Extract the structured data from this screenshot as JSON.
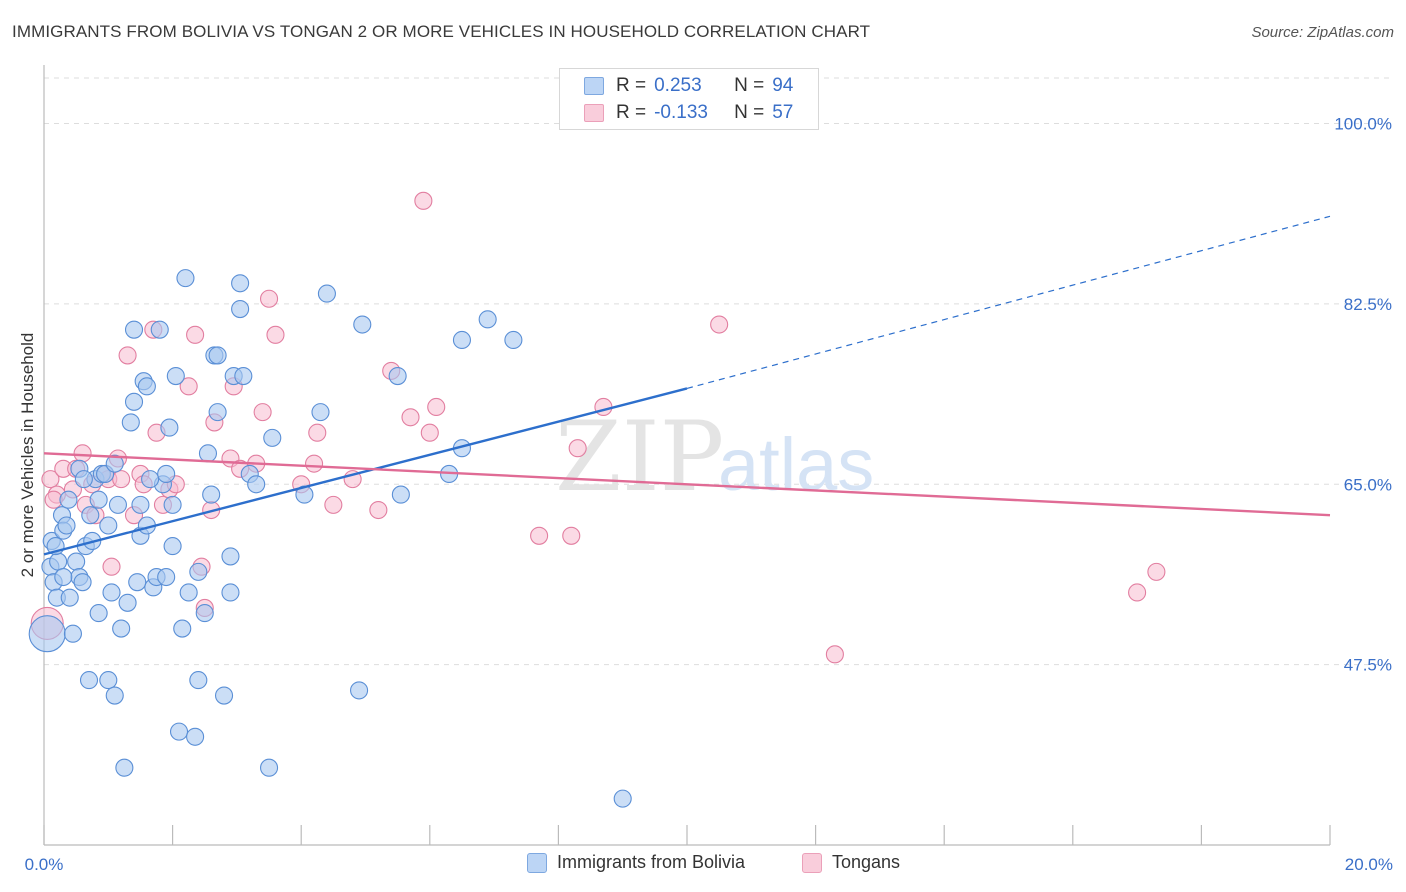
{
  "title": "IMMIGRANTS FROM BOLIVIA VS TONGAN 2 OR MORE VEHICLES IN HOUSEHOLD CORRELATION CHART",
  "source": "Source: ZipAtlas.com",
  "watermark": {
    "zip": "ZIP",
    "atlas": "atlas"
  },
  "legend": {
    "r_label": "R =",
    "n_label": "N =",
    "rows": [
      {
        "r": "0.253",
        "n": "94"
      },
      {
        "r": "-0.133",
        "n": "57"
      }
    ]
  },
  "colors": {
    "bolivia_fill": "#a9c8f0",
    "bolivia_stroke": "#5a8fd6",
    "bolivia_line": "#2d6fcc",
    "tongan_fill": "#f7bcd0",
    "tongan_stroke": "#e27ea0",
    "tongan_line": "#e06b95",
    "grid": "#dddddd",
    "tick_text": "#3a6fc8"
  },
  "chart_data": {
    "type": "scatter",
    "title": "IMMIGRANTS FROM BOLIVIA VS TONGAN 2 OR MORE VEHICLES IN HOUSEHOLD CORRELATION CHART",
    "xlabel": "",
    "ylabel": "2 or more Vehicles in Household",
    "xlim": [
      0,
      20
    ],
    "ylim": [
      30,
      105
    ],
    "x_ticks": [
      0,
      2,
      4,
      6,
      8,
      10,
      12,
      14,
      16,
      18,
      20
    ],
    "x_tick_labels": [
      "0.0%",
      "20.0%"
    ],
    "y_ticks": [
      47.5,
      65.0,
      82.5,
      100.0
    ],
    "y_tick_labels": [
      "47.5%",
      "65.0%",
      "82.5%",
      "100.0%"
    ],
    "grid": true,
    "legend_position": "top-center and bottom",
    "series": [
      {
        "name": "Immigrants from Bolivia",
        "points": [
          [
            0.05,
            50.5
          ],
          [
            0.1,
            57.0
          ],
          [
            0.12,
            59.5
          ],
          [
            0.15,
            55.5
          ],
          [
            0.2,
            54.0
          ],
          [
            0.22,
            57.5
          ],
          [
            0.28,
            62.0
          ],
          [
            0.3,
            60.5
          ],
          [
            0.35,
            61.0
          ],
          [
            0.38,
            63.5
          ],
          [
            0.4,
            54.0
          ],
          [
            0.45,
            50.5
          ],
          [
            0.5,
            57.5
          ],
          [
            0.55,
            56.0
          ],
          [
            0.6,
            55.5
          ],
          [
            0.65,
            59.0
          ],
          [
            0.7,
            46.0
          ],
          [
            0.72,
            62.0
          ],
          [
            0.75,
            59.5
          ],
          [
            0.8,
            65.5
          ],
          [
            0.85,
            52.5
          ],
          [
            0.9,
            66.0
          ],
          [
            0.95,
            66.0
          ],
          [
            1.0,
            46.0
          ],
          [
            1.0,
            61.0
          ],
          [
            1.05,
            54.5
          ],
          [
            1.1,
            44.5
          ],
          [
            1.15,
            63.0
          ],
          [
            1.2,
            51.0
          ],
          [
            1.25,
            37.5
          ],
          [
            1.3,
            53.5
          ],
          [
            1.35,
            71.0
          ],
          [
            1.4,
            80.0
          ],
          [
            1.4,
            73.0
          ],
          [
            1.5,
            63.0
          ],
          [
            1.5,
            60.0
          ],
          [
            1.55,
            75.0
          ],
          [
            1.6,
            74.5
          ],
          [
            1.6,
            61.0
          ],
          [
            1.7,
            55.0
          ],
          [
            1.75,
            56.0
          ],
          [
            1.8,
            80.0
          ],
          [
            1.85,
            65.0
          ],
          [
            1.9,
            56.0
          ],
          [
            1.9,
            66.0
          ],
          [
            1.95,
            70.5
          ],
          [
            2.0,
            59.0
          ],
          [
            2.05,
            75.5
          ],
          [
            2.1,
            41.0
          ],
          [
            2.15,
            51.0
          ],
          [
            2.2,
            85.0
          ],
          [
            2.25,
            54.5
          ],
          [
            2.35,
            40.5
          ],
          [
            2.4,
            46.0
          ],
          [
            2.4,
            56.5
          ],
          [
            2.5,
            52.5
          ],
          [
            2.55,
            68.0
          ],
          [
            2.6,
            64.0
          ],
          [
            2.65,
            77.5
          ],
          [
            2.7,
            77.5
          ],
          [
            2.7,
            72.0
          ],
          [
            2.8,
            44.5
          ],
          [
            2.9,
            54.5
          ],
          [
            2.9,
            58.0
          ],
          [
            2.95,
            75.5
          ],
          [
            3.05,
            84.5
          ],
          [
            3.05,
            82.0
          ],
          [
            3.1,
            75.5
          ],
          [
            3.2,
            66.0
          ],
          [
            3.3,
            65.0
          ],
          [
            3.5,
            37.5
          ],
          [
            3.55,
            69.5
          ],
          [
            4.05,
            64.0
          ],
          [
            4.3,
            72.0
          ],
          [
            4.4,
            83.5
          ],
          [
            4.9,
            45.0
          ],
          [
            4.95,
            80.5
          ],
          [
            5.5,
            75.5
          ],
          [
            5.55,
            64.0
          ],
          [
            6.3,
            66.0
          ],
          [
            6.5,
            68.5
          ],
          [
            6.5,
            79.0
          ],
          [
            6.9,
            81.0
          ],
          [
            7.3,
            79.0
          ],
          [
            9.0,
            34.5
          ],
          [
            1.1,
            67.0
          ],
          [
            0.3,
            56.0
          ],
          [
            0.55,
            66.5
          ],
          [
            1.45,
            55.5
          ],
          [
            0.85,
            63.5
          ],
          [
            1.65,
            65.5
          ],
          [
            2.0,
            63.0
          ],
          [
            0.18,
            59.0
          ],
          [
            0.62,
            65.5
          ]
        ],
        "trend": {
          "x": [
            0,
            10
          ],
          "y": [
            58.2,
            74.3
          ],
          "extended_to": [
            20,
            91.0
          ]
        }
      },
      {
        "name": "Tongans",
        "points": [
          [
            0.05,
            51.5
          ],
          [
            0.1,
            65.5
          ],
          [
            0.2,
            64.0
          ],
          [
            0.3,
            66.5
          ],
          [
            0.45,
            64.5
          ],
          [
            0.5,
            66.5
          ],
          [
            0.6,
            68.0
          ],
          [
            0.65,
            63.0
          ],
          [
            0.75,
            65.0
          ],
          [
            0.8,
            62.0
          ],
          [
            0.95,
            66.0
          ],
          [
            1.0,
            65.5
          ],
          [
            1.05,
            57.0
          ],
          [
            1.15,
            67.5
          ],
          [
            1.3,
            77.5
          ],
          [
            1.4,
            62.0
          ],
          [
            1.5,
            66.0
          ],
          [
            1.55,
            65.0
          ],
          [
            1.7,
            80.0
          ],
          [
            1.75,
            70.0
          ],
          [
            1.85,
            63.0
          ],
          [
            1.95,
            64.5
          ],
          [
            2.05,
            65.0
          ],
          [
            2.25,
            74.5
          ],
          [
            2.35,
            79.5
          ],
          [
            2.45,
            57.0
          ],
          [
            2.5,
            53.0
          ],
          [
            2.65,
            71.0
          ],
          [
            2.9,
            67.5
          ],
          [
            2.95,
            74.5
          ],
          [
            3.05,
            66.5
          ],
          [
            3.3,
            67.0
          ],
          [
            3.4,
            72.0
          ],
          [
            3.5,
            83.0
          ],
          [
            3.6,
            79.5
          ],
          [
            4.0,
            65.0
          ],
          [
            4.2,
            67.0
          ],
          [
            4.25,
            70.0
          ],
          [
            4.5,
            63.0
          ],
          [
            4.8,
            65.5
          ],
          [
            5.2,
            62.5
          ],
          [
            5.4,
            76.0
          ],
          [
            5.7,
            71.5
          ],
          [
            6.0,
            70.0
          ],
          [
            6.1,
            72.5
          ],
          [
            5.9,
            92.5
          ],
          [
            7.7,
            60.0
          ],
          [
            8.2,
            60.0
          ],
          [
            8.3,
            68.5
          ],
          [
            8.7,
            72.5
          ],
          [
            10.5,
            80.5
          ],
          [
            12.3,
            48.5
          ],
          [
            17.0,
            54.5
          ],
          [
            17.3,
            56.5
          ],
          [
            0.15,
            63.5
          ],
          [
            1.2,
            65.5
          ],
          [
            2.6,
            62.5
          ]
        ],
        "trend": {
          "x": [
            0,
            20
          ],
          "y": [
            68.0,
            62.0
          ]
        }
      }
    ]
  },
  "bottom_legend": {
    "items": [
      {
        "label": "Immigrants from Bolivia"
      },
      {
        "label": "Tongans"
      }
    ]
  }
}
